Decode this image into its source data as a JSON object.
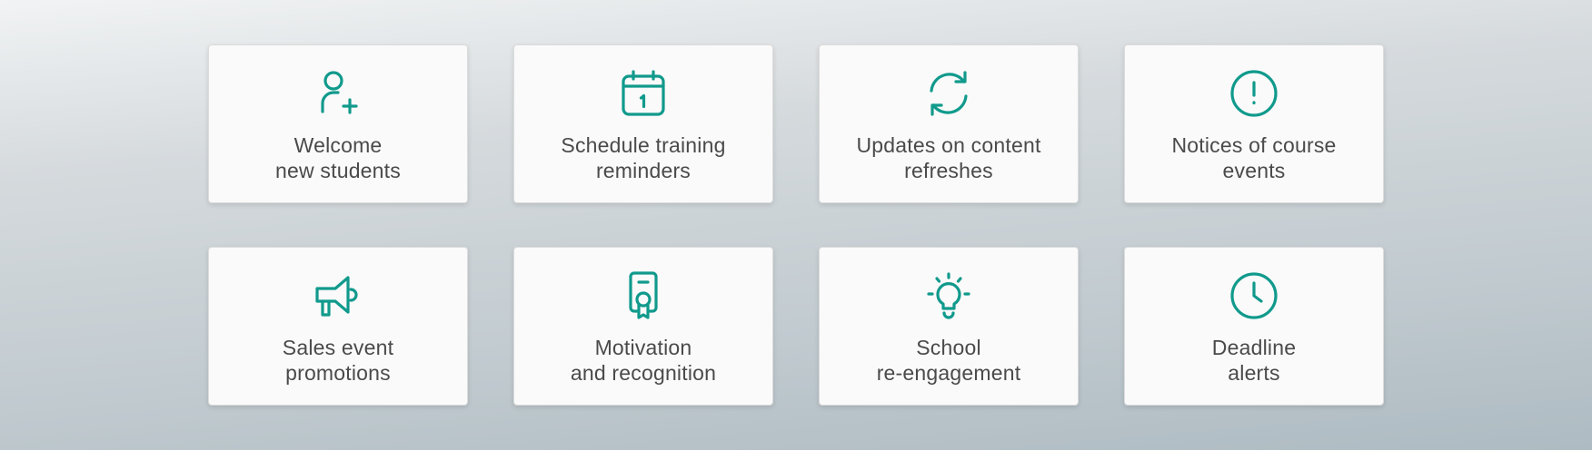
{
  "theme": {
    "accent": "#109a8c",
    "text": "#4a4a4a"
  },
  "cards": [
    {
      "icon": "user-plus-icon",
      "line1": "Welcome",
      "line2": "new students"
    },
    {
      "icon": "calendar-icon",
      "line1": "Schedule training",
      "line2": "reminders"
    },
    {
      "icon": "refresh-icon",
      "line1": "Updates on content",
      "line2": "refreshes"
    },
    {
      "icon": "alert-circle-icon",
      "line1": "Notices of course",
      "line2": "events"
    },
    {
      "icon": "megaphone-icon",
      "line1": "Sales event",
      "line2": "promotions"
    },
    {
      "icon": "certificate-icon",
      "line1": "Motivation",
      "line2": "and recognition"
    },
    {
      "icon": "lightbulb-icon",
      "line1": "School",
      "line2": "re-engagement"
    },
    {
      "icon": "clock-icon",
      "line1": "Deadline",
      "line2": "alerts"
    }
  ]
}
